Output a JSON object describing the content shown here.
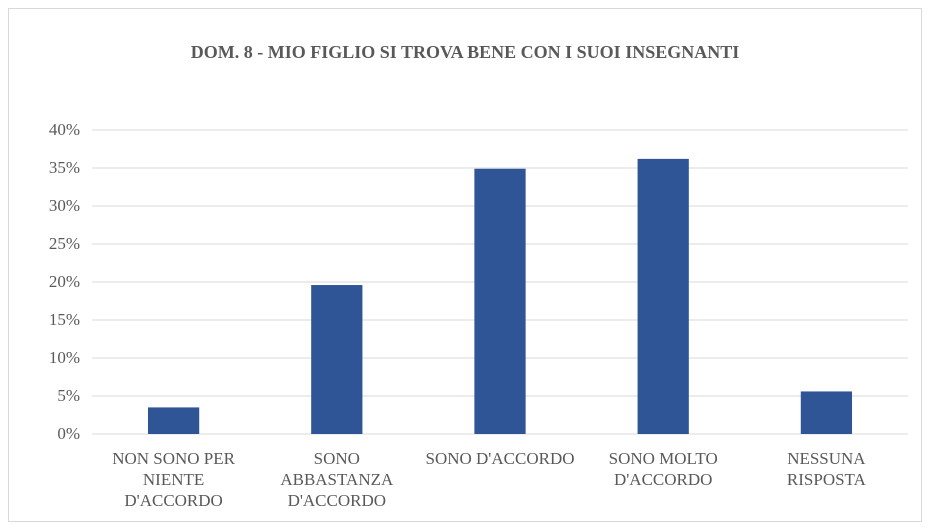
{
  "chart_data": {
    "type": "bar",
    "title": "DOM. 8 - MIO FIGLIO SI TROVA BENE CON I SUOI INSEGNANTI",
    "categories": [
      "NON SONO PER NIENTE D'ACCORDO",
      "SONO ABBASTANZA D'ACCORDO",
      "SONO D'ACCORDO",
      "SONO MOLTO D'ACCORDO",
      "NESSUNA RISPOSTA"
    ],
    "values": [
      3.5,
      19.6,
      34.9,
      36.2,
      5.6
    ],
    "color": "#2f5597",
    "ylim": [
      0,
      40
    ],
    "yticks": [
      {
        "value": 0,
        "label": "0%"
      },
      {
        "value": 5,
        "label": "5%"
      },
      {
        "value": 10,
        "label": "10%"
      },
      {
        "value": 15,
        "label": "15%"
      },
      {
        "value": 20,
        "label": "20%"
      },
      {
        "value": 25,
        "label": "25%"
      },
      {
        "value": 30,
        "label": "30%"
      },
      {
        "value": 35,
        "label": "35%"
      },
      {
        "value": 40,
        "label": "40%"
      }
    ],
    "grid": true
  }
}
